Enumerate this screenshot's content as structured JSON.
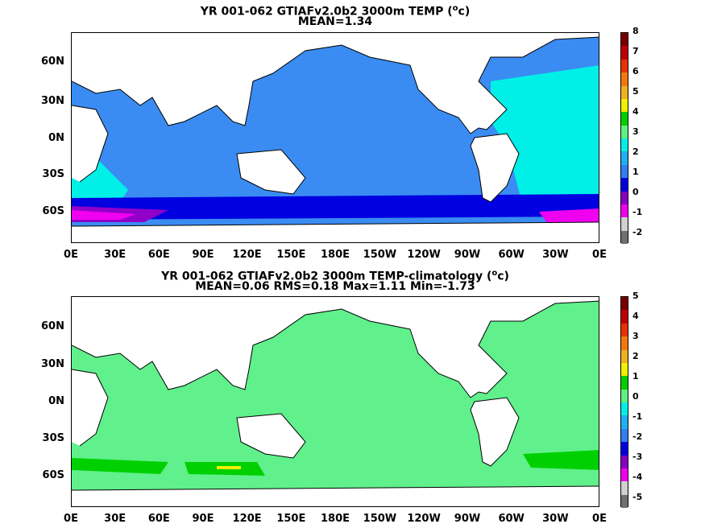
{
  "panel1": {
    "title_prefix": "YR 001-062 GTIAFv2.0b2 3000m TEMP (",
    "title_unit_sup": "o",
    "title_suffix": "c)",
    "subtitle": "MEAN=1.34",
    "colorbar_labels": [
      "8",
      "7",
      "6",
      "5",
      "4",
      "3",
      "2",
      "1",
      "0",
      "-1",
      "-2"
    ],
    "colorbar_colors": [
      "#7a0000",
      "#c00000",
      "#e83000",
      "#f07a10",
      "#f0b020",
      "#f0f000",
      "#00d000",
      "#60f080",
      "#00f0e8",
      "#20b0f0",
      "#3080f0",
      "#0000e0",
      "#8800c0",
      "#f000f0",
      "#d0d0d0",
      "#707070"
    ]
  },
  "panel2": {
    "title_prefix": "YR 001-062 GTIAFv2.0b2 3000m TEMP-climatology (",
    "title_unit_sup": "o",
    "title_suffix": "c)",
    "subtitle": "MEAN=0.06   RMS=0.18   Max=1.11   Min=-1.73",
    "colorbar_labels": [
      "5",
      "4",
      "3",
      "2",
      "1",
      "0",
      "-1",
      "-2",
      "-3",
      "-4",
      "-5"
    ],
    "colorbar_colors": [
      "#7a0000",
      "#c00000",
      "#e83000",
      "#f07a10",
      "#f0b020",
      "#f0f000",
      "#00d000",
      "#60f080",
      "#00f0e8",
      "#20b0f0",
      "#3080f0",
      "#0000e0",
      "#8800c0",
      "#f000f0",
      "#d0d0d0",
      "#707070"
    ]
  },
  "axes": {
    "lat_labels": [
      "60N",
      "30N",
      "0N",
      "30S",
      "60S"
    ],
    "lon_labels": [
      "0E",
      "30E",
      "60E",
      "90E",
      "120E",
      "150E",
      "180E",
      "150W",
      "120W",
      "90W",
      "60W",
      "30W",
      "0E"
    ]
  },
  "colors": {
    "ocean1": "#3a8cf2",
    "ocean1_atl": "#00f0e8",
    "southern1": "#0000e0",
    "south_purple": "#9000c8",
    "south_magenta": "#f000f0",
    "gray": "#d0d0d0",
    "ocean2": "#60f08c",
    "ocean2_strong": "#00d000",
    "ocean2_warm": "#f0f000",
    "land": "#ffffff",
    "coast": "#000000"
  }
}
